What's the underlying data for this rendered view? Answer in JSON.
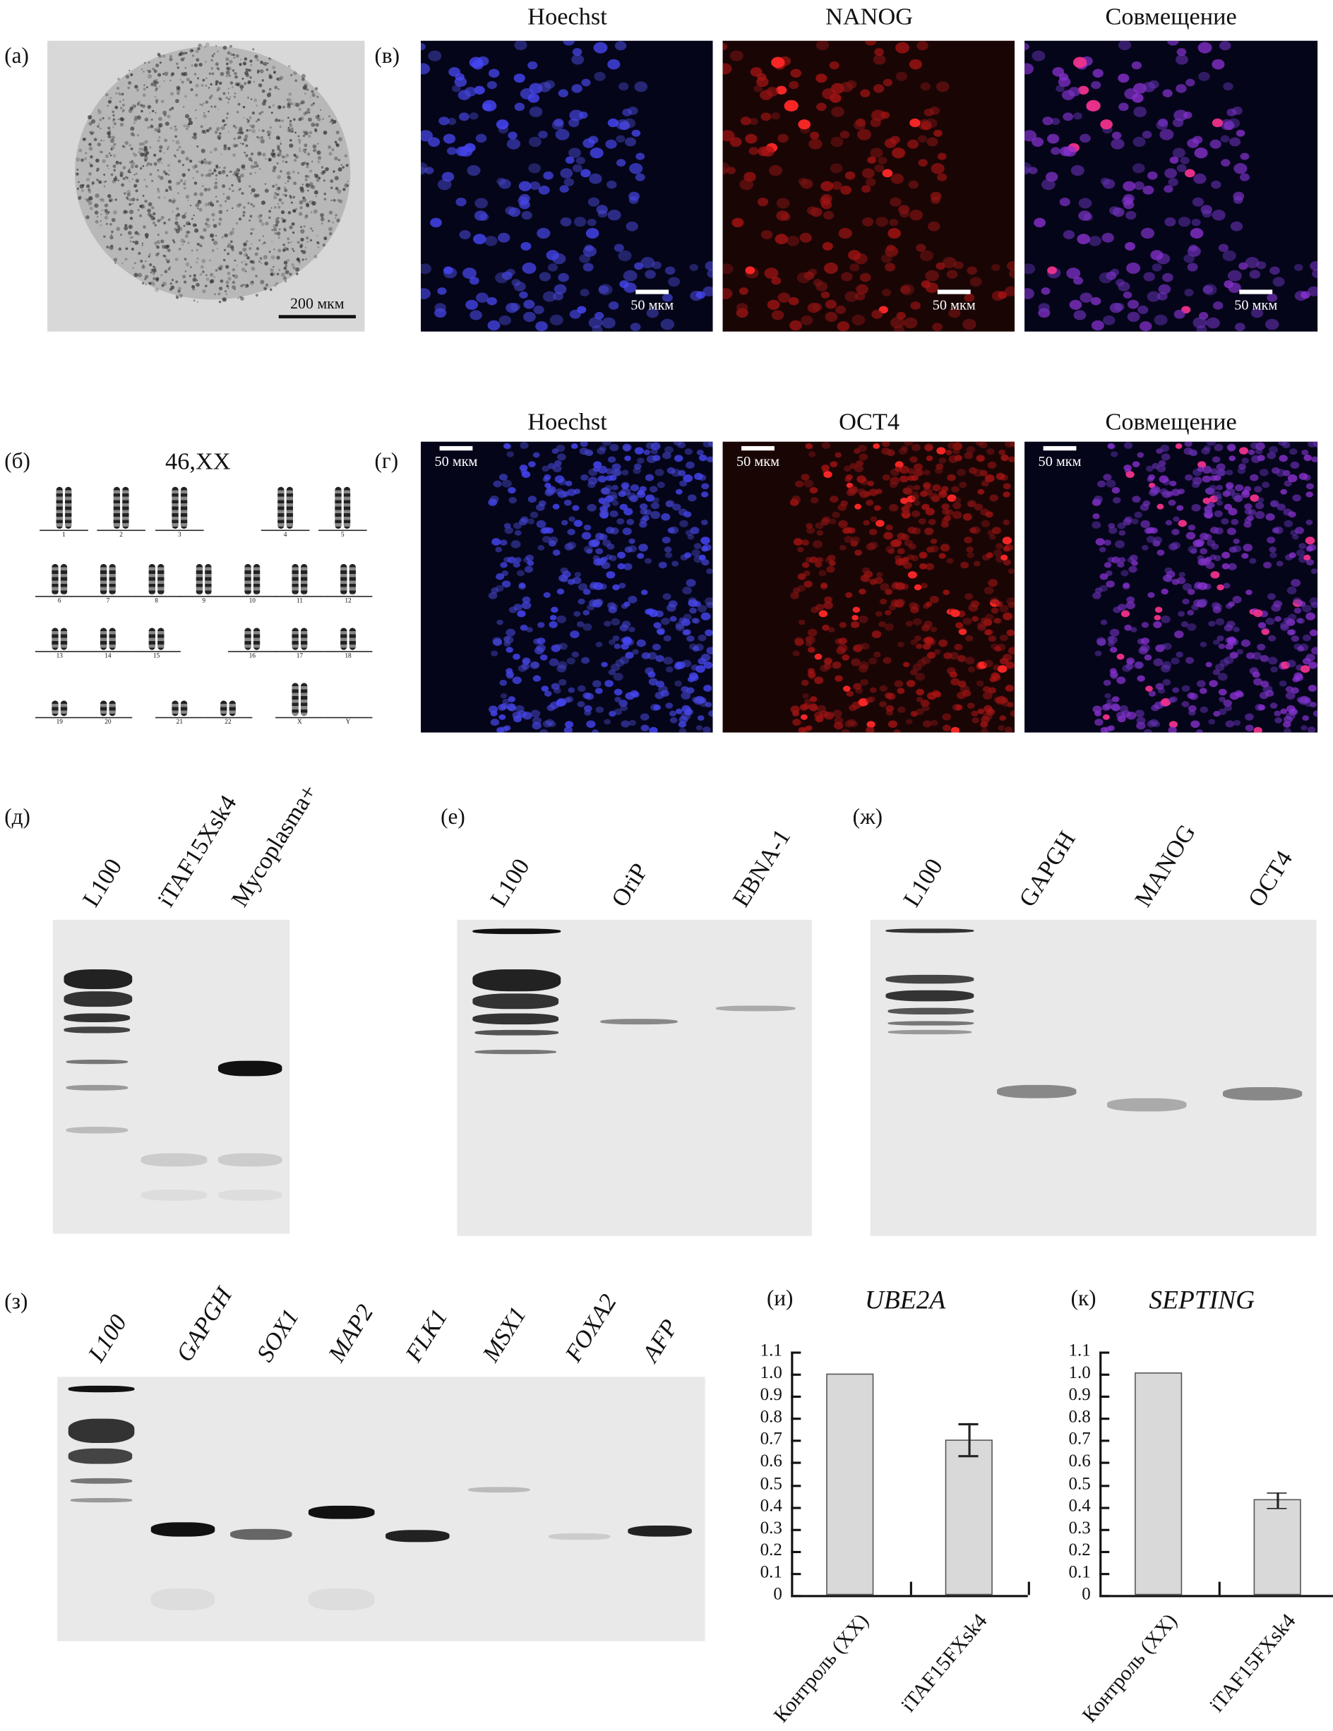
{
  "panels": {
    "a": {
      "label": "(а)",
      "scale_bar": "200 мкм"
    },
    "v": {
      "label": "(в)",
      "titles": [
        "Hoechst",
        "NANOG",
        "Совмещение"
      ],
      "scale_bar": "50 мкм"
    },
    "b": {
      "label": "(б)",
      "karyotype": "46,XX",
      "chromosomes": [
        "1",
        "2",
        "3",
        "4",
        "5",
        "6",
        "7",
        "8",
        "9",
        "10",
        "11",
        "12",
        "13",
        "14",
        "15",
        "16",
        "17",
        "18",
        "19",
        "20",
        "21",
        "22",
        "X",
        "Y"
      ]
    },
    "g": {
      "label": "(г)",
      "titles": [
        "Hoechst",
        "OCT4",
        "Совмещение"
      ],
      "scale_bar": "50 мкм"
    },
    "d": {
      "label": "(д)",
      "lanes": [
        "L100",
        "iTAF15Xsk4",
        "Mycoplasma+"
      ]
    },
    "e": {
      "label": "(е)",
      "lanes": [
        "L100",
        "OriP",
        "EBNA-1"
      ]
    },
    "zh": {
      "label": "(ж)",
      "lanes": [
        "L100",
        "GAPGH",
        "MANOG",
        "OCT4"
      ]
    },
    "z": {
      "label": "(з)",
      "lanes": [
        "L100",
        "GAPGH",
        "SOX1",
        "MAP2",
        "FLK1",
        "MSX1",
        "FOXA2",
        "AFP"
      ]
    }
  },
  "colors": {
    "hoechst": "#3a3fd0",
    "red": "#e0201c",
    "bar_fill": "#d9d9d9"
  },
  "chart_data": [
    {
      "type": "bar",
      "panel_label": "(и)",
      "title": "UBE2A",
      "categories": [
        "Контроль (XX)",
        "iTAF15FXsk4"
      ],
      "values": [
        1.0,
        0.7
      ],
      "error_low": [
        null,
        0.63
      ],
      "error_high": [
        null,
        0.775
      ],
      "ylim": [
        0,
        1.1
      ],
      "yticks": [
        "0",
        "0.1",
        "0.2",
        "0.3",
        "0.4",
        "0.5",
        "0.6",
        "0.7",
        "0.8",
        "0.9",
        "1.0",
        "1.1"
      ],
      "grid": false
    },
    {
      "type": "bar",
      "panel_label": "(к)",
      "title": "SEPTING",
      "categories": [
        "Контроль (XX)",
        "iTAF15FXsk4"
      ],
      "values": [
        1.005,
        0.435
      ],
      "error_low": [
        null,
        0.395
      ],
      "error_high": [
        null,
        0.465
      ],
      "ylim": [
        0,
        1.1
      ],
      "yticks": [
        "0",
        "0.1",
        "0.2",
        "0.3",
        "0.4",
        "0.5",
        "0.6",
        "0.7",
        "0.8",
        "0.9",
        "1.0",
        "1.1"
      ],
      "grid": false
    }
  ]
}
